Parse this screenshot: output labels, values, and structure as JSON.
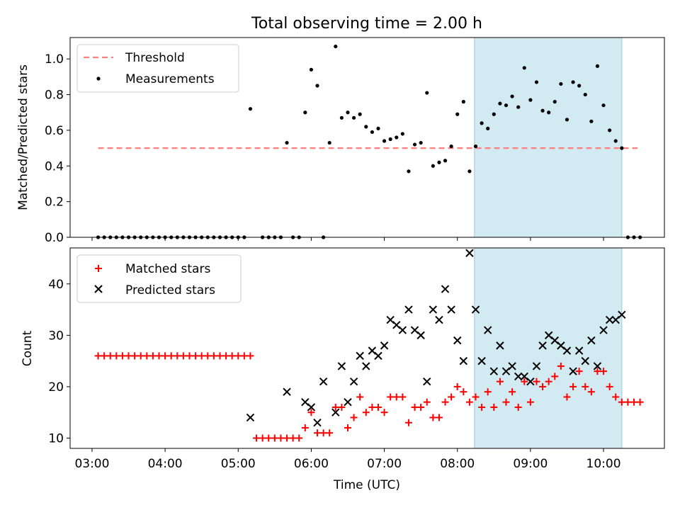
{
  "title": "Total observing time = 2.00 h",
  "colors": {
    "threshold": "#ff7f7f",
    "measurements": "#000000",
    "matched": "#ff0000",
    "predicted": "#000000",
    "shade": "#add8e6"
  },
  "chart_data": [
    {
      "type": "scatter",
      "panel": "top",
      "ylabel": "Matched/Predicted stars",
      "xlabel": "",
      "xlim": [
        "02:42",
        "10:50"
      ],
      "ylim": [
        0.0,
        1.12
      ],
      "yticks": [
        "0.0",
        "0.2",
        "0.4",
        "0.6",
        "0.8",
        "1.0"
      ],
      "legend_position": "top-left",
      "legend": [
        "Threshold",
        "Measurements"
      ],
      "shaded_region": [
        "08:14",
        "10:15"
      ],
      "threshold": {
        "value": 0.5,
        "x_start": "03:05",
        "x_end": "10:28"
      },
      "series": [
        {
          "name": "Measurements",
          "x": [
            "03:05",
            "03:10",
            "03:15",
            "03:20",
            "03:25",
            "03:30",
            "03:35",
            "03:40",
            "03:45",
            "03:50",
            "03:55",
            "04:00",
            "04:05",
            "04:10",
            "04:15",
            "04:20",
            "04:25",
            "04:30",
            "04:35",
            "04:40",
            "04:45",
            "04:50",
            "04:55",
            "05:00",
            "05:05",
            "05:10",
            "05:20",
            "05:25",
            "05:30",
            "05:35",
            "05:40",
            "05:45",
            "05:50",
            "05:55",
            "06:00",
            "06:05",
            "06:10",
            "06:15",
            "06:20",
            "06:25",
            "06:30",
            "06:35",
            "06:40",
            "06:45",
            "06:50",
            "06:55",
            "07:00",
            "07:05",
            "07:10",
            "07:15",
            "07:20",
            "07:25",
            "07:30",
            "07:35",
            "07:40",
            "07:45",
            "07:50",
            "07:55",
            "08:00",
            "08:05",
            "08:10",
            "08:15",
            "08:20",
            "08:25",
            "08:30",
            "08:35",
            "08:40",
            "08:45",
            "08:50",
            "08:55",
            "09:00",
            "09:05",
            "09:10",
            "09:15",
            "09:20",
            "09:25",
            "09:30",
            "09:35",
            "09:40",
            "09:45",
            "09:50",
            "09:55",
            "10:00",
            "10:05",
            "10:10",
            "10:15",
            "10:20",
            "10:25",
            "10:30"
          ],
          "y": [
            0,
            0,
            0,
            0,
            0,
            0,
            0,
            0,
            0,
            0,
            0,
            0,
            0,
            0,
            0,
            0,
            0,
            0,
            0,
            0,
            0,
            0,
            0,
            0,
            0,
            0.72,
            0,
            0,
            0,
            0,
            0.53,
            0,
            0,
            0.7,
            0.94,
            0.85,
            0,
            0.53,
            1.07,
            0.67,
            0.7,
            0.67,
            0.69,
            0.62,
            0.59,
            0.61,
            0.54,
            0.55,
            0.56,
            0.58,
            0.37,
            0.52,
            0.53,
            0.81,
            0.4,
            0.42,
            0.43,
            0.51,
            0.69,
            0.76,
            0.37,
            0.51,
            0.64,
            0.61,
            0.69,
            0.75,
            0.74,
            0.79,
            0.73,
            0.95,
            0.77,
            0.87,
            0.71,
            0.7,
            0.76,
            0.86,
            0.66,
            0.87,
            0.85,
            0.8,
            0.65,
            0.96,
            0.74,
            0.6,
            0.54,
            0.5,
            0,
            0,
            0
          ]
        }
      ]
    },
    {
      "type": "scatter",
      "panel": "bottom",
      "ylabel": "Count",
      "xlabel": "Time (UTC)",
      "xlim": [
        "02:42",
        "10:50"
      ],
      "ylim": [
        8,
        47
      ],
      "yticks": [
        "10",
        "20",
        "30",
        "40"
      ],
      "xticks": [
        "03:00",
        "04:00",
        "05:00",
        "06:00",
        "07:00",
        "08:00",
        "09:00",
        "10:00"
      ],
      "legend_position": "top-left",
      "legend": [
        "Matched stars",
        "Predicted stars"
      ],
      "shaded_region": [
        "08:14",
        "10:15"
      ],
      "series": [
        {
          "name": "Matched stars",
          "x": [
            "03:05",
            "03:10",
            "03:15",
            "03:20",
            "03:25",
            "03:30",
            "03:35",
            "03:40",
            "03:45",
            "03:50",
            "03:55",
            "04:00",
            "04:05",
            "04:10",
            "04:15",
            "04:20",
            "04:25",
            "04:30",
            "04:35",
            "04:40",
            "04:45",
            "04:50",
            "04:55",
            "05:00",
            "05:05",
            "05:10",
            "05:15",
            "05:20",
            "05:25",
            "05:30",
            "05:35",
            "05:40",
            "05:45",
            "05:50",
            "05:55",
            "06:00",
            "06:05",
            "06:10",
            "06:15",
            "06:20",
            "06:25",
            "06:30",
            "06:35",
            "06:40",
            "06:45",
            "06:50",
            "06:55",
            "07:00",
            "07:05",
            "07:10",
            "07:15",
            "07:20",
            "07:25",
            "07:30",
            "07:35",
            "07:40",
            "07:45",
            "07:50",
            "07:55",
            "08:00",
            "08:05",
            "08:10",
            "08:15",
            "08:20",
            "08:25",
            "08:30",
            "08:35",
            "08:40",
            "08:45",
            "08:50",
            "08:55",
            "09:00",
            "09:05",
            "09:10",
            "09:15",
            "09:20",
            "09:25",
            "09:30",
            "09:35",
            "09:40",
            "09:45",
            "09:50",
            "09:55",
            "10:00",
            "10:05",
            "10:10",
            "10:15",
            "10:20",
            "10:25",
            "10:30"
          ],
          "y": [
            26,
            26,
            26,
            26,
            26,
            26,
            26,
            26,
            26,
            26,
            26,
            26,
            26,
            26,
            26,
            26,
            26,
            26,
            26,
            26,
            26,
            26,
            26,
            26,
            26,
            26,
            10,
            10,
            10,
            10,
            10,
            10,
            10,
            10,
            12,
            15,
            11,
            11,
            11,
            16,
            16,
            12,
            14,
            18,
            15,
            16,
            16,
            15,
            18,
            18,
            18,
            13,
            16,
            16,
            17,
            14,
            14,
            17,
            18,
            20,
            19,
            17,
            18,
            16,
            19,
            16,
            21,
            17,
            19,
            16,
            21,
            17,
            21,
            20,
            21,
            22,
            24,
            18,
            20,
            23,
            20,
            19,
            23,
            23,
            20,
            18,
            17,
            17,
            17,
            17
          ]
        },
        {
          "name": "Predicted stars",
          "x": [
            "05:10",
            "05:40",
            "05:55",
            "06:00",
            "06:05",
            "06:10",
            "06:20",
            "06:25",
            "06:30",
            "06:35",
            "06:40",
            "06:45",
            "06:50",
            "06:55",
            "07:00",
            "07:05",
            "07:10",
            "07:15",
            "07:20",
            "07:25",
            "07:30",
            "07:35",
            "07:40",
            "07:45",
            "07:50",
            "07:55",
            "08:00",
            "08:05",
            "08:10",
            "08:15",
            "08:20",
            "08:25",
            "08:30",
            "08:35",
            "08:40",
            "08:45",
            "08:50",
            "08:55",
            "09:00",
            "09:05",
            "09:10",
            "09:15",
            "09:20",
            "09:25",
            "09:30",
            "09:35",
            "09:40",
            "09:45",
            "09:50",
            "09:55",
            "10:00",
            "10:05",
            "10:10",
            "10:15"
          ],
          "y": [
            14,
            19,
            17,
            16,
            13,
            21,
            15,
            24,
            17,
            21,
            26,
            24,
            27,
            26,
            28,
            33,
            32,
            31,
            35,
            31,
            30,
            21,
            35,
            33,
            39,
            35,
            29,
            25,
            46,
            35,
            25,
            31,
            23,
            28,
            23,
            24,
            22,
            22,
            21,
            24,
            28,
            30,
            29,
            28,
            27,
            23,
            27,
            25,
            29,
            24,
            31,
            33,
            33,
            34
          ]
        }
      ]
    }
  ]
}
